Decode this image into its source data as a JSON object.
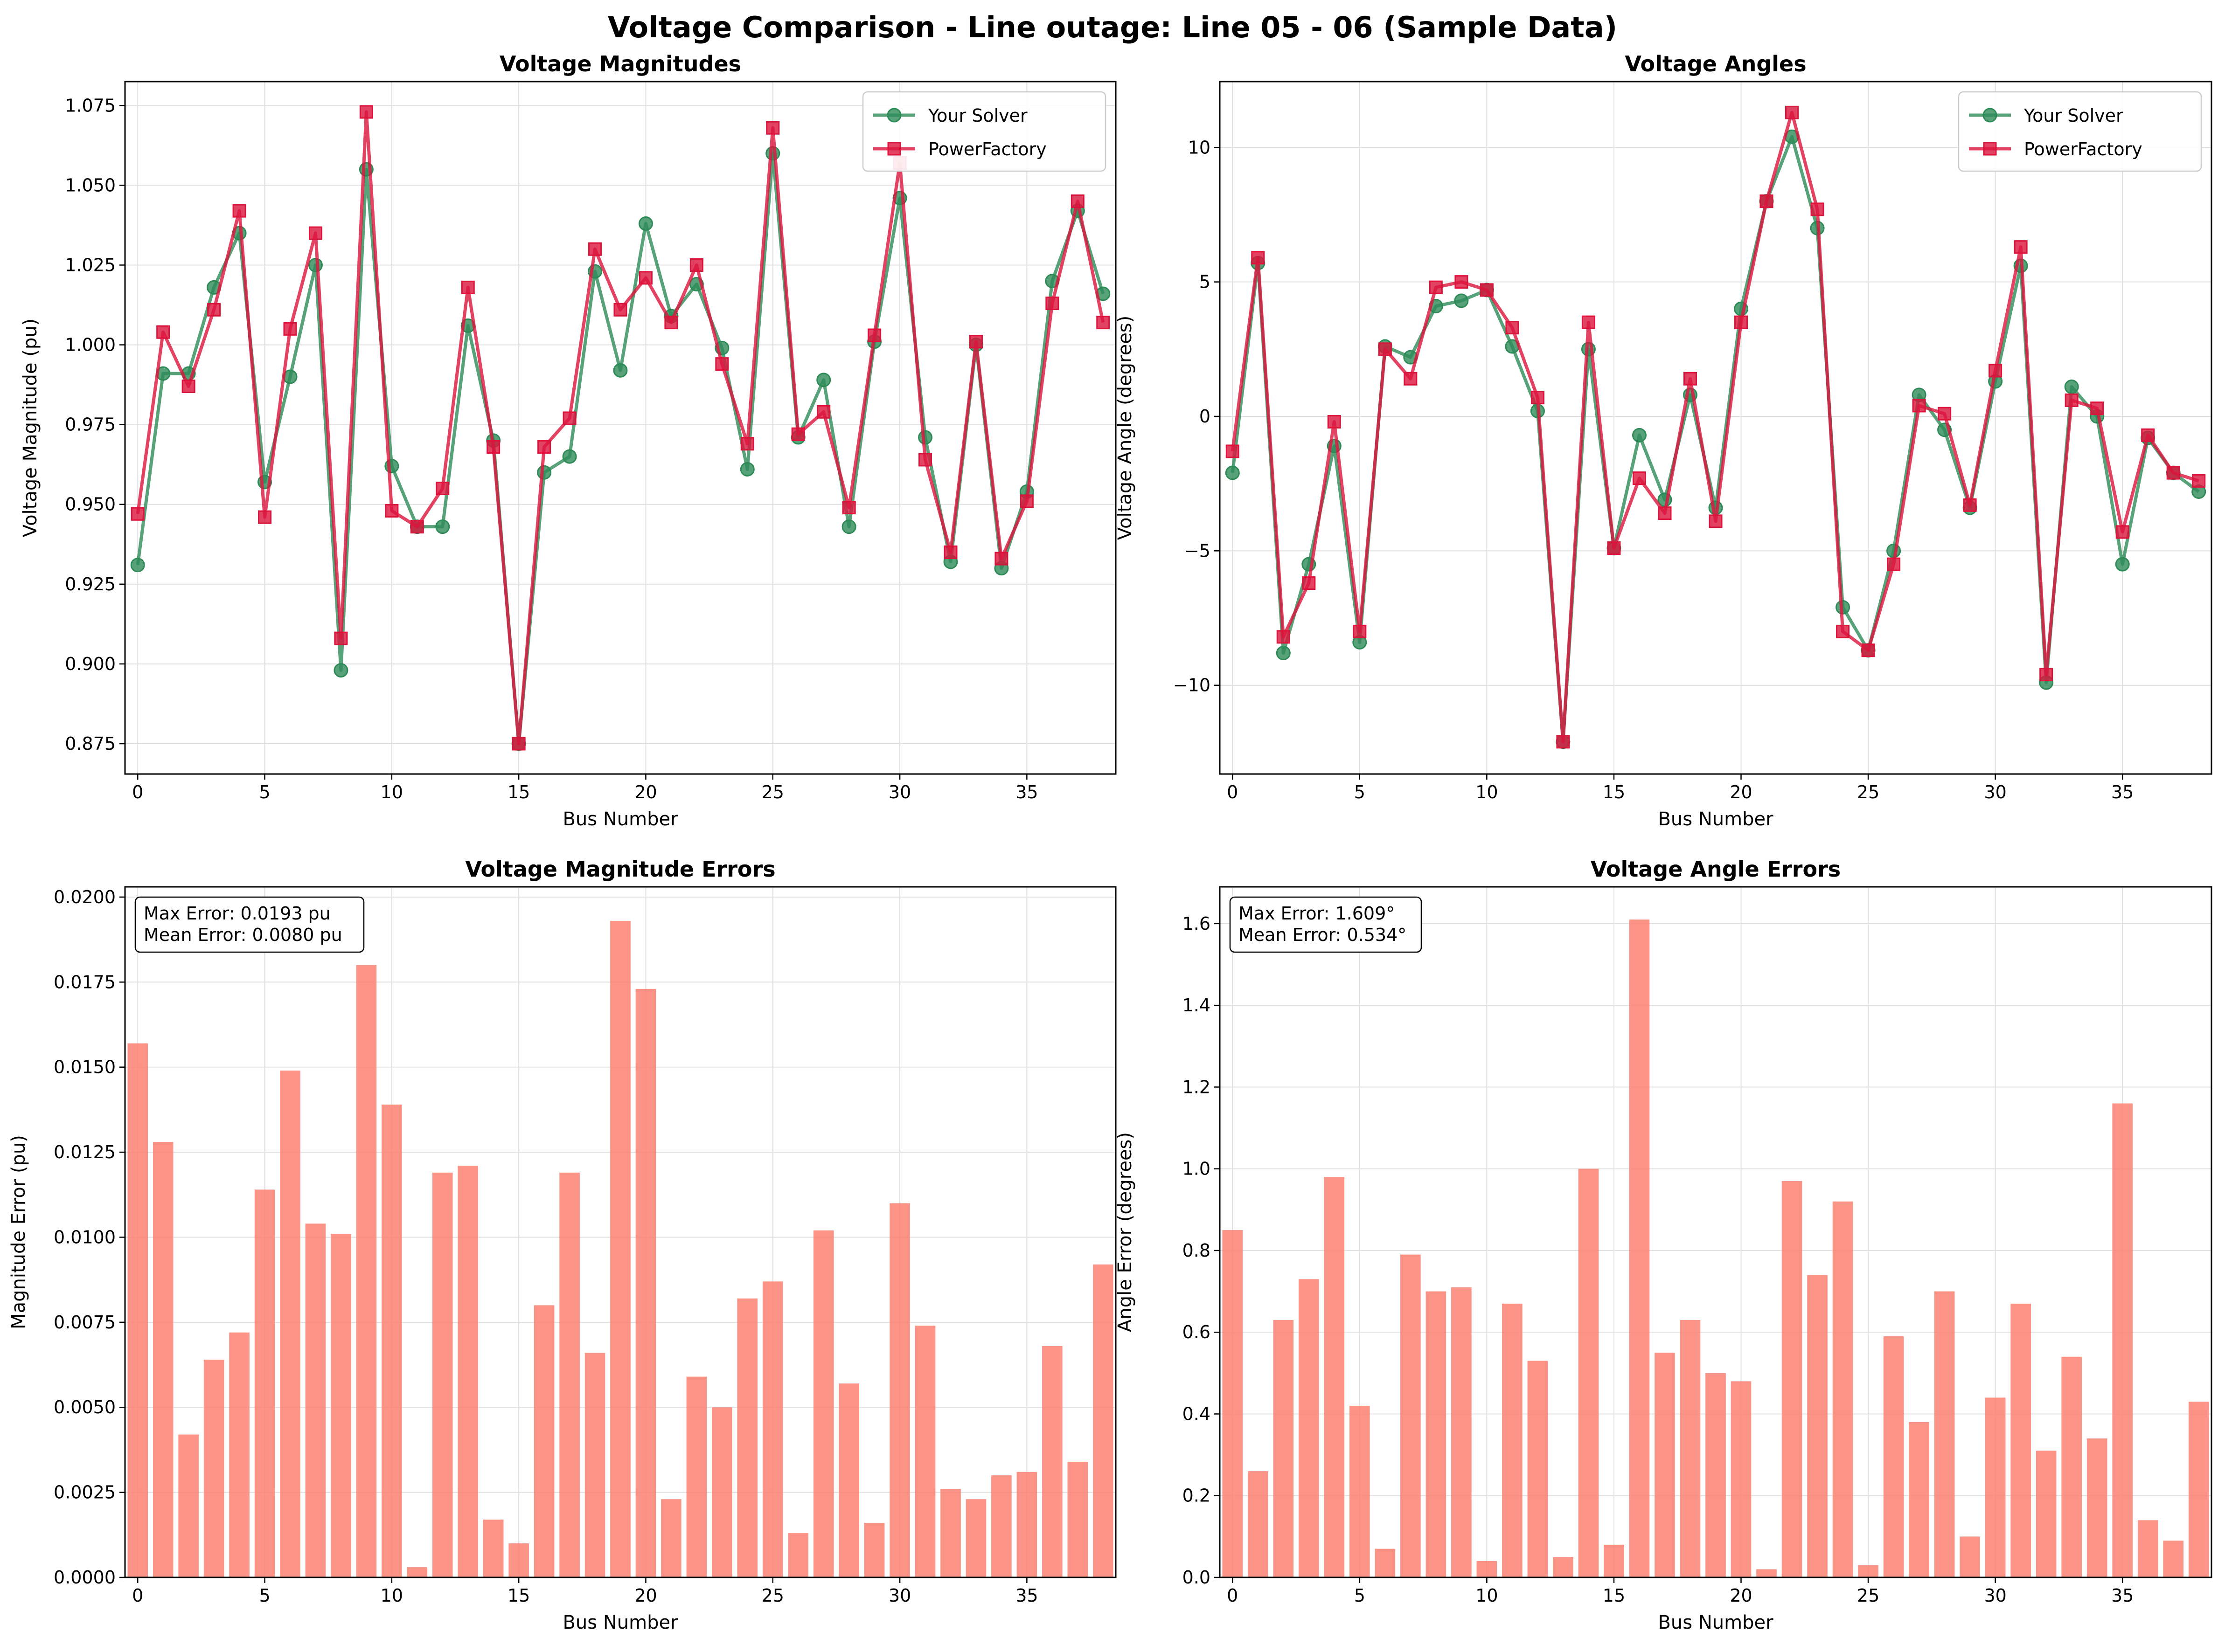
{
  "figure_title": "Voltage Comparison - Line outage: Line 05 - 06 (Sample Data)",
  "colors": {
    "solver": "#2e8b57",
    "powerfactory": "#dc143c",
    "bars": "#fa8072",
    "grid": "#e0e0e0",
    "axis": "#000000"
  },
  "chart_data": [
    {
      "id": "mag",
      "type": "line",
      "title": "Voltage Magnitudes",
      "xlabel": "Bus Number",
      "ylabel": "Voltage Magnitude (pu)",
      "xlim": [
        -0.5,
        38.5
      ],
      "ylim": [
        0.8655,
        1.0825
      ],
      "xticks": [
        0,
        5,
        10,
        15,
        20,
        25,
        30,
        35
      ],
      "xtick_labels": [
        "0",
        "5",
        "10",
        "15",
        "20",
        "25",
        "30",
        "35"
      ],
      "yticks": [
        0.875,
        0.9,
        0.925,
        0.95,
        0.975,
        1.0,
        1.025,
        1.05,
        1.075
      ],
      "ytick_labels": [
        "0.875",
        "0.900",
        "0.925",
        "0.950",
        "0.975",
        "1.000",
        "1.025",
        "1.050",
        "1.075"
      ],
      "grid": true,
      "legend": "top-right",
      "series": [
        {
          "name": "Your Solver",
          "marker": "circle",
          "color": "#2e8b57",
          "values": [
            0.931,
            0.991,
            0.991,
            1.018,
            1.035,
            0.957,
            0.99,
            1.025,
            0.898,
            1.055,
            0.962,
            0.943,
            0.943,
            1.006,
            0.97,
            0.875,
            0.96,
            0.965,
            1.023,
            0.992,
            1.038,
            1.009,
            1.019,
            0.999,
            0.961,
            1.06,
            0.971,
            0.989,
            0.943,
            1.001,
            1.046,
            0.971,
            0.932,
            1.0,
            0.93,
            0.954,
            1.02,
            1.042,
            1.016
          ]
        },
        {
          "name": "PowerFactory",
          "marker": "square",
          "color": "#dc143c",
          "values": [
            0.947,
            1.004,
            0.987,
            1.011,
            1.042,
            0.946,
            1.005,
            1.035,
            0.908,
            1.073,
            0.948,
            0.943,
            0.955,
            1.018,
            0.968,
            0.875,
            0.968,
            0.977,
            1.03,
            1.011,
            1.021,
            1.007,
            1.025,
            0.994,
            0.969,
            1.068,
            0.972,
            0.979,
            0.949,
            1.003,
            1.057,
            0.964,
            0.935,
            1.001,
            0.933,
            0.951,
            1.013,
            1.045,
            1.007
          ]
        }
      ]
    },
    {
      "id": "ang",
      "type": "line",
      "title": "Voltage Angles",
      "xlabel": "Bus Number",
      "ylabel": "Voltage Angle (degrees)",
      "xlim": [
        -0.5,
        38.5
      ],
      "ylim": [
        -13.3,
        12.45
      ],
      "xticks": [
        0,
        5,
        10,
        15,
        20,
        25,
        30,
        35
      ],
      "xtick_labels": [
        "0",
        "5",
        "10",
        "15",
        "20",
        "25",
        "30",
        "35"
      ],
      "yticks": [
        -10,
        -5,
        0,
        5,
        10
      ],
      "ytick_labels": [
        "−10",
        "−5",
        "0",
        "5",
        "10"
      ],
      "grid": true,
      "legend": "top-right",
      "series": [
        {
          "name": "Your Solver",
          "marker": "circle",
          "color": "#2e8b57",
          "values": [
            -2.1,
            5.7,
            -8.8,
            -5.5,
            -1.1,
            -8.4,
            2.6,
            2.2,
            4.1,
            4.3,
            4.7,
            2.6,
            0.2,
            -12.1,
            2.5,
            -4.9,
            -0.7,
            -3.1,
            0.8,
            -3.4,
            4.0,
            8.0,
            10.4,
            7.0,
            -7.1,
            -8.7,
            -5.0,
            0.8,
            -0.5,
            -3.4,
            1.3,
            5.6,
            -9.9,
            1.1,
            0.0,
            -5.5,
            -0.8,
            -2.1,
            -2.8
          ]
        },
        {
          "name": "PowerFactory",
          "marker": "square",
          "color": "#dc143c",
          "values": [
            -1.3,
            5.9,
            -8.2,
            -6.2,
            -0.2,
            -8.0,
            2.5,
            1.4,
            4.8,
            5.0,
            4.7,
            3.3,
            0.7,
            -12.1,
            3.5,
            -4.9,
            -2.3,
            -3.6,
            1.4,
            -3.9,
            3.5,
            8.0,
            11.3,
            7.7,
            -8.0,
            -8.7,
            -5.5,
            0.4,
            0.1,
            -3.3,
            1.7,
            6.3,
            -9.6,
            0.6,
            0.3,
            -4.3,
            -0.7,
            -2.1,
            -2.4
          ]
        }
      ]
    },
    {
      "id": "magerr",
      "type": "bar",
      "title": "Voltage Magnitude Errors",
      "xlabel": "Bus Number",
      "ylabel": "Magnitude Error (pu)",
      "xlim": [
        -0.5,
        38.5
      ],
      "ylim": [
        0,
        0.0203
      ],
      "xticks": [
        0,
        5,
        10,
        15,
        20,
        25,
        30,
        35
      ],
      "xtick_labels": [
        "0",
        "5",
        "10",
        "15",
        "20",
        "25",
        "30",
        "35"
      ],
      "yticks": [
        0.0,
        0.0025,
        0.005,
        0.0075,
        0.01,
        0.0125,
        0.015,
        0.0175,
        0.02
      ],
      "ytick_labels": [
        "0.0000",
        "0.0025",
        "0.0050",
        "0.0075",
        "0.0100",
        "0.0125",
        "0.0150",
        "0.0175",
        "0.0200"
      ],
      "grid": true,
      "annotation": [
        "Max Error: 0.0193 pu",
        "Mean Error: 0.0080 pu"
      ],
      "values": [
        0.0157,
        0.0128,
        0.0042,
        0.0064,
        0.0072,
        0.0114,
        0.0149,
        0.0104,
        0.0101,
        0.018,
        0.0139,
        0.0003,
        0.0119,
        0.0121,
        0.0017,
        0.001,
        0.008,
        0.0119,
        0.0066,
        0.0193,
        0.0173,
        0.0023,
        0.0059,
        0.005,
        0.0082,
        0.0087,
        0.0013,
        0.0102,
        0.0057,
        0.0016,
        0.011,
        0.0074,
        0.0026,
        0.0023,
        0.003,
        0.0031,
        0.0068,
        0.0034,
        0.0092
      ]
    },
    {
      "id": "angerr",
      "type": "bar",
      "title": "Voltage Angle Errors",
      "xlabel": "Bus Number",
      "ylabel": "Angle Error (degrees)",
      "xlim": [
        -0.5,
        38.5
      ],
      "ylim": [
        0,
        1.69
      ],
      "xticks": [
        0,
        5,
        10,
        15,
        20,
        25,
        30,
        35
      ],
      "xtick_labels": [
        "0",
        "5",
        "10",
        "15",
        "20",
        "25",
        "30",
        "35"
      ],
      "yticks": [
        0.0,
        0.2,
        0.4,
        0.6,
        0.8,
        1.0,
        1.2,
        1.4,
        1.6
      ],
      "ytick_labels": [
        "0.0",
        "0.2",
        "0.4",
        "0.6",
        "0.8",
        "1.0",
        "1.2",
        "1.4",
        "1.6"
      ],
      "grid": true,
      "annotation": [
        "Max Error: 1.609°",
        "Mean Error: 0.534°"
      ],
      "values": [
        0.85,
        0.26,
        0.63,
        0.73,
        0.98,
        0.42,
        0.07,
        0.79,
        0.7,
        0.71,
        0.04,
        0.67,
        0.53,
        0.05,
        1.0,
        0.08,
        1.61,
        0.55,
        0.63,
        0.5,
        0.48,
        0.02,
        0.97,
        0.74,
        0.92,
        0.03,
        0.59,
        0.38,
        0.7,
        0.1,
        0.44,
        0.67,
        0.31,
        0.54,
        0.34,
        1.16,
        0.14,
        0.09,
        0.43
      ]
    }
  ]
}
